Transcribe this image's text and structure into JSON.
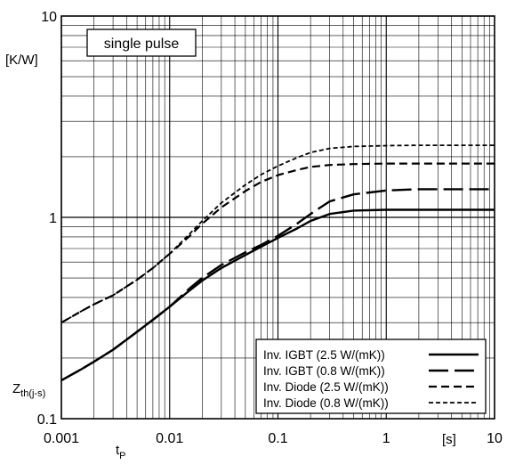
{
  "chart_data": {
    "type": "line",
    "x_scale": "log",
    "y_scale": "log",
    "xlim": [
      0.001,
      10
    ],
    "ylim": [
      0.1,
      10
    ],
    "grid": true,
    "annotation": "single pulse",
    "y_unit": "[K/W]",
    "x_unit": "[s]",
    "ylabel_main": "Z",
    "ylabel_sub": "th(j-s)",
    "xlabel_main": "t",
    "xlabel_sub": "P",
    "x_tick_labels": [
      "0.001",
      "0.01",
      "0.1",
      "1",
      "10"
    ],
    "y_tick_labels": [
      "0.1",
      "1",
      "10"
    ],
    "legend_position": "bottom-right",
    "series": [
      {
        "name": "Inv. IGBT  (2.5 W/(mK))",
        "style": "solid",
        "x": [
          0.001,
          0.0015,
          0.002,
          0.003,
          0.005,
          0.007,
          0.01,
          0.015,
          0.02,
          0.03,
          0.05,
          0.07,
          0.1,
          0.15,
          0.2,
          0.3,
          0.5,
          1,
          2,
          5,
          10
        ],
        "y": [
          0.155,
          0.175,
          0.192,
          0.22,
          0.27,
          0.31,
          0.36,
          0.43,
          0.485,
          0.56,
          0.65,
          0.715,
          0.79,
          0.88,
          0.96,
          1.04,
          1.08,
          1.09,
          1.09,
          1.09,
          1.09
        ]
      },
      {
        "name": "Inv. IGBT  (0.8 W/(mK))",
        "style": "long-dash",
        "x": [
          0.001,
          0.0015,
          0.002,
          0.003,
          0.005,
          0.007,
          0.01,
          0.015,
          0.02,
          0.03,
          0.05,
          0.07,
          0.1,
          0.15,
          0.2,
          0.3,
          0.5,
          1,
          2,
          5,
          10
        ],
        "y": [
          0.155,
          0.175,
          0.192,
          0.22,
          0.27,
          0.31,
          0.36,
          0.44,
          0.5,
          0.58,
          0.67,
          0.73,
          0.81,
          0.93,
          1.04,
          1.2,
          1.3,
          1.36,
          1.38,
          1.38,
          1.38
        ]
      },
      {
        "name": "Inv. Diode (2.5 W/(mK))",
        "style": "short-dash",
        "x": [
          0.001,
          0.0015,
          0.002,
          0.003,
          0.005,
          0.007,
          0.01,
          0.015,
          0.02,
          0.03,
          0.05,
          0.07,
          0.1,
          0.15,
          0.2,
          0.3,
          0.5,
          1,
          2,
          5,
          10
        ],
        "y": [
          0.3,
          0.34,
          0.37,
          0.41,
          0.49,
          0.56,
          0.66,
          0.8,
          0.93,
          1.12,
          1.35,
          1.5,
          1.62,
          1.72,
          1.78,
          1.82,
          1.84,
          1.85,
          1.85,
          1.85,
          1.85
        ]
      },
      {
        "name": "Inv. Diode (0.8 W/(mK))",
        "style": "dotted-dash",
        "x": [
          0.001,
          0.0015,
          0.002,
          0.003,
          0.005,
          0.007,
          0.01,
          0.015,
          0.02,
          0.03,
          0.05,
          0.07,
          0.1,
          0.15,
          0.2,
          0.3,
          0.5,
          1,
          2,
          5,
          10
        ],
        "y": [
          0.3,
          0.34,
          0.37,
          0.41,
          0.49,
          0.56,
          0.66,
          0.82,
          0.96,
          1.18,
          1.45,
          1.63,
          1.8,
          1.98,
          2.1,
          2.2,
          2.25,
          2.27,
          2.28,
          2.28,
          2.28
        ]
      }
    ]
  }
}
